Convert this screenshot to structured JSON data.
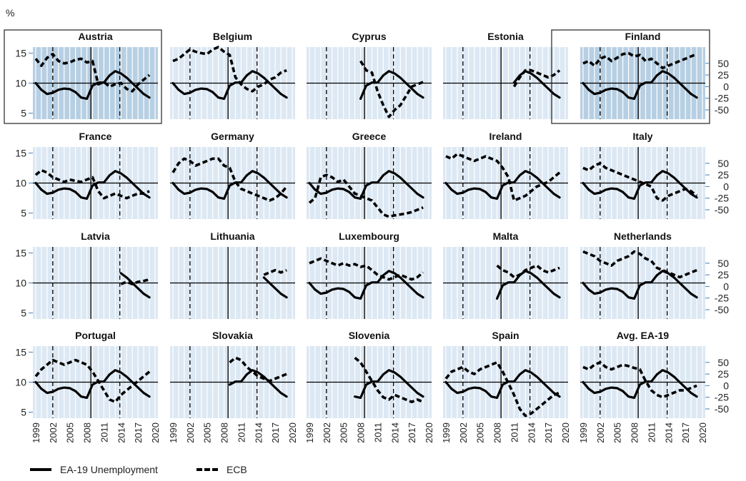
{
  "chart_data": {
    "type": "line",
    "y_unit_label": "%",
    "left_axis": {
      "ylim": [
        4,
        16
      ],
      "ticks": [
        5,
        10,
        15
      ]
    },
    "right_axis": {
      "ylim": [
        -70,
        85
      ],
      "ticks": [
        "50",
        "25",
        "0",
        "-25",
        "-50"
      ],
      "tick_values": [
        50,
        25,
        0,
        -25,
        -50
      ]
    },
    "x_ticks": [
      "1999",
      "2002",
      "2005",
      "2008",
      "2011",
      "2014",
      "2017",
      "2020"
    ],
    "x_tick_values": [
      1999,
      2002,
      2005,
      2008,
      2011,
      2014,
      2017,
      2020
    ],
    "xlim": [
      1998.5,
      2020.5
    ],
    "background_color": "#dce8f3",
    "highlight_color": "#b7cfe3",
    "legend": [
      {
        "label": "EA-19 Unemployment",
        "style": "solid"
      },
      {
        "label": "ECB",
        "style": "dashed"
      }
    ],
    "unemployment": {
      "x": [
        1999,
        2000,
        2001,
        2002,
        2003,
        2004,
        2005,
        2006,
        2007,
        2008,
        2009,
        2010,
        2011,
        2012,
        2013,
        2014,
        2015,
        2016,
        2017,
        2018,
        2019
      ],
      "values": [
        10.0,
        8.9,
        8.2,
        8.4,
        8.9,
        9.1,
        9.0,
        8.5,
        7.6,
        7.4,
        9.6,
        10.1,
        10.1,
        11.3,
        12.0,
        11.6,
        10.9,
        10.0,
        9.1,
        8.2,
        7.6
      ]
    },
    "panels": [
      {
        "name": "Austria",
        "highlight": true,
        "start": 1999,
        "ecb": [
          60,
          45,
          62,
          70,
          55,
          50,
          52,
          58,
          60,
          52,
          55,
          5,
          10,
          0,
          5,
          8,
          -5,
          -10,
          5,
          15,
          25
        ]
      },
      {
        "name": "Belgium",
        "highlight": false,
        "start": 1999,
        "ecb": [
          55,
          60,
          70,
          80,
          75,
          72,
          70,
          80,
          85,
          75,
          68,
          20,
          5,
          -5,
          -10,
          0,
          5,
          15,
          20,
          30,
          35
        ]
      },
      {
        "name": "Cyprus",
        "highlight": false,
        "start": 2008,
        "ecb": [
          55,
          35,
          30,
          -10,
          -40,
          -65,
          -50,
          -40,
          -20,
          0,
          5,
          10
        ]
      },
      {
        "name": "Estonia",
        "highlight": false,
        "start": 2011,
        "ecb": [
          0,
          20,
          35,
          35,
          30,
          25,
          20,
          25,
          35
        ]
      },
      {
        "name": "Finland",
        "highlight": true,
        "start": 1999,
        "ecb": [
          50,
          55,
          45,
          60,
          65,
          55,
          62,
          70,
          72,
          65,
          68,
          55,
          60,
          50,
          40,
          45,
          50,
          55,
          60,
          65,
          70
        ]
      },
      {
        "name": "France",
        "highlight": false,
        "start": 1999,
        "ecb": [
          25,
          35,
          30,
          20,
          15,
          10,
          15,
          12,
          10,
          15,
          20,
          -10,
          -25,
          -20,
          -15,
          -20,
          -25,
          -20,
          -15,
          -15,
          -10
        ]
      },
      {
        "name": "Germany",
        "highlight": false,
        "start": 1999,
        "ecb": [
          30,
          50,
          60,
          55,
          45,
          50,
          55,
          60,
          60,
          45,
          40,
          10,
          -5,
          -10,
          -15,
          -20,
          -25,
          -30,
          -25,
          -15,
          0
        ]
      },
      {
        "name": "Greece",
        "highlight": false,
        "start": 1999,
        "ecb": [
          -35,
          -25,
          20,
          25,
          20,
          10,
          15,
          0,
          -15,
          -20,
          -25,
          -30,
          -45,
          -60,
          -65,
          -62,
          -60,
          -58,
          -55,
          -50,
          -45
        ]
      },
      {
        "name": "Ireland",
        "highlight": false,
        "start": 1999,
        "ecb": [
          65,
          60,
          70,
          65,
          60,
          55,
          60,
          65,
          60,
          55,
          40,
          20,
          -30,
          -25,
          -20,
          -10,
          0,
          5,
          10,
          20,
          30
        ]
      },
      {
        "name": "Italy",
        "highlight": false,
        "start": 1999,
        "ecb": [
          40,
          35,
          45,
          50,
          40,
          35,
          30,
          25,
          20,
          15,
          10,
          5,
          0,
          -25,
          -30,
          -20,
          -15,
          -10,
          -5,
          -10,
          -20
        ]
      },
      {
        "name": "Latvia",
        "highlight": false,
        "start": 2014,
        "ecb": [
          5,
          10,
          5,
          10,
          12,
          15
        ]
      },
      {
        "name": "Lithuania",
        "highlight": false,
        "start": 2015,
        "ecb": [
          25,
          30,
          35,
          30,
          35
        ]
      },
      {
        "name": "Luxembourg",
        "highlight": false,
        "start": 1999,
        "ecb": [
          50,
          55,
          60,
          55,
          50,
          45,
          50,
          45,
          48,
          42,
          45,
          35,
          25,
          20,
          15,
          20,
          25,
          20,
          15,
          20,
          30
        ]
      },
      {
        "name": "Malta",
        "highlight": false,
        "start": 2008,
        "ecb": [
          45,
          35,
          30,
          20,
          25,
          35,
          40,
          45,
          35,
          30,
          35,
          40
        ]
      },
      {
        "name": "Netherlands",
        "highlight": false,
        "start": 1999,
        "ecb": [
          75,
          70,
          65,
          55,
          50,
          45,
          55,
          60,
          65,
          75,
          70,
          60,
          55,
          40,
          35,
          30,
          25,
          20,
          25,
          30,
          35
        ]
      },
      {
        "name": "Portugal",
        "highlight": false,
        "start": 1999,
        "ecb": [
          20,
          35,
          45,
          55,
          50,
          45,
          50,
          55,
          50,
          45,
          30,
          10,
          -10,
          -30,
          -35,
          -20,
          -10,
          0,
          10,
          20,
          30
        ]
      },
      {
        "name": "Slovakia",
        "highlight": false,
        "start": 2009,
        "ecb": [
          50,
          60,
          55,
          40,
          30,
          20,
          15,
          10,
          15,
          20,
          25
        ]
      },
      {
        "name": "Slovenia",
        "highlight": false,
        "start": 2007,
        "ecb": [
          60,
          50,
          30,
          10,
          -10,
          -25,
          -30,
          -20,
          -25,
          -30,
          -35,
          -30,
          -35
        ]
      },
      {
        "name": "Spain",
        "highlight": false,
        "start": 1999,
        "ecb": [
          15,
          30,
          35,
          40,
          30,
          25,
          35,
          40,
          45,
          50,
          30,
          5,
          -20,
          -50,
          -65,
          -60,
          -50,
          -40,
          -30,
          -20,
          -15
        ]
      },
      {
        "name": "Avg. EA-19",
        "highlight": false,
        "start": 1999,
        "ecb": [
          40,
          35,
          45,
          50,
          40,
          35,
          40,
          45,
          42,
          38,
          35,
          10,
          -10,
          -20,
          -25,
          -20,
          -15,
          -10,
          -10,
          -5,
          0
        ]
      }
    ]
  }
}
